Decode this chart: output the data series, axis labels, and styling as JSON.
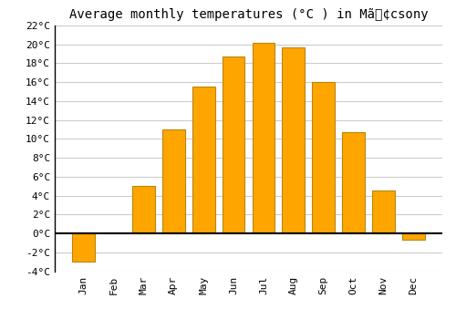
{
  "title": "Average monthly temperatures (°C ) in Mã¢csony",
  "months": [
    "Jan",
    "Feb",
    "Mar",
    "Apr",
    "May",
    "Jun",
    "Jul",
    "Aug",
    "Sep",
    "Oct",
    "Nov",
    "Dec"
  ],
  "values": [
    -3.0,
    0.0,
    5.0,
    11.0,
    15.5,
    18.7,
    20.2,
    19.7,
    16.0,
    10.7,
    4.5,
    -0.7
  ],
  "bar_color": "#FFA500",
  "bar_edge_color": "#B8860B",
  "ylim": [
    -4,
    22
  ],
  "yticks": [
    -4,
    -2,
    0,
    2,
    4,
    6,
    8,
    10,
    12,
    14,
    16,
    18,
    20,
    22
  ],
  "ytick_labels": [
    "-4°C",
    "-2°C",
    "0°C",
    "2°C",
    "4°C",
    "6°C",
    "8°C",
    "10°C",
    "12°C",
    "14°C",
    "16°C",
    "18°C",
    "20°C",
    "22°C"
  ],
  "grid_color": "#cccccc",
  "background_color": "#ffffff",
  "zero_line_color": "#000000",
  "title_fontsize": 10,
  "tick_fontsize": 8,
  "bar_width": 0.75
}
